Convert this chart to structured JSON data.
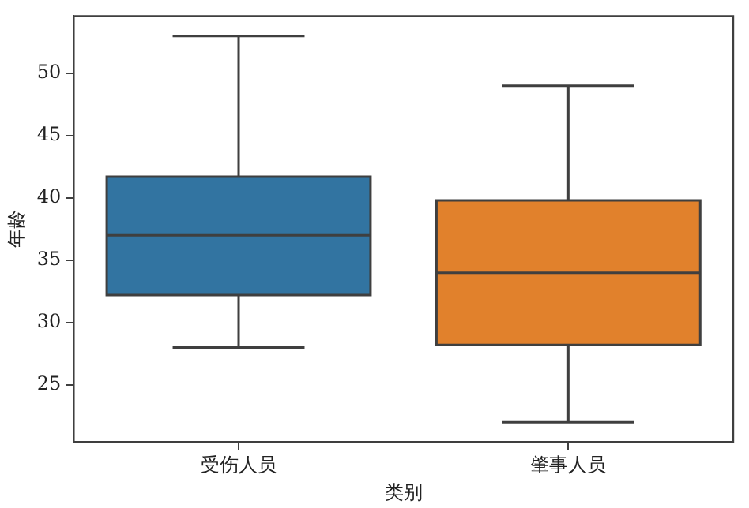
{
  "chart_data": {
    "type": "box",
    "xlabel": "类别",
    "ylabel": "年龄",
    "categories": [
      "受伤人员",
      "肇事人员"
    ],
    "boxes": [
      {
        "low": 28,
        "q1": 32.2,
        "median": 37,
        "q3": 41.7,
        "high": 53
      },
      {
        "low": 22,
        "q1": 28.2,
        "median": 34,
        "q3": 39.8,
        "high": 49
      }
    ],
    "colors": [
      "#3274a1",
      "#e1812c"
    ],
    "ylim": [
      20.4,
      54.6
    ],
    "yticks": [
      25,
      30,
      35,
      40,
      45,
      50
    ]
  }
}
